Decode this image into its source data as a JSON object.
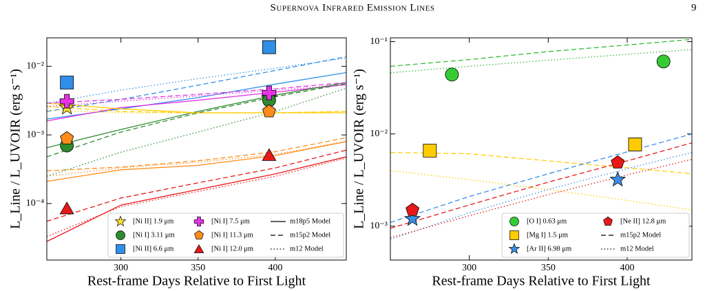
{
  "header": {
    "title": "Supernova Infrared Emission Lines",
    "page": "9"
  },
  "chart_data": [
    {
      "type": "line",
      "xlabel": "Rest-frame Days Relative to First Light",
      "ylabel": "L_Line / L_UVOIR (erg s⁻¹)",
      "xlim": [
        252,
        446
      ],
      "xticks": [
        300,
        350,
        400
      ],
      "ylim": [
        1.5e-05,
        0.026
      ],
      "yscale": "log",
      "yticks": [
        {
          "value": 0.0001,
          "label": "10⁻⁴"
        },
        {
          "value": 0.001,
          "label": "10⁻³"
        },
        {
          "value": 0.01,
          "label": "10⁻²"
        }
      ],
      "legend": "lower right",
      "series": [
        {
          "name": "[Ni II] 1.9 μm",
          "color": "#ffe135",
          "marker": "star",
          "x": [
            265,
            396
          ],
          "values": [
            0.0025,
            0.0034
          ]
        },
        {
          "name": "[Ni I] 3.11 μm",
          "color": "#2e8b2e",
          "marker": "circle",
          "x": [
            265,
            396
          ],
          "values": [
            0.0007,
            0.0032
          ]
        },
        {
          "name": "[Ni II] 6.6 μm",
          "color": "#2f8fe8",
          "marker": "square",
          "x": [
            265,
            396
          ],
          "values": [
            0.0058,
            0.019
          ]
        },
        {
          "name": "[Ni I] 7.5 μm",
          "color": "#e633e6",
          "marker": "plus",
          "x": [
            265,
            396
          ],
          "values": [
            0.0031,
            0.0041
          ]
        },
        {
          "name": "[Ni I] 11.3 μm",
          "color": "#ff8c1a",
          "marker": "pentagon",
          "x": [
            265,
            396
          ],
          "values": [
            0.00089,
            0.0022
          ]
        },
        {
          "name": "[Ni I] 12.0 μm",
          "color": "#e81818",
          "marker": "triangle",
          "x": [
            265,
            396
          ],
          "values": [
            8.5e-05,
            0.00051
          ]
        }
      ],
      "models": [
        {
          "name": "m18p5 Model",
          "dash": "solid",
          "x": [
            252,
            300,
            350,
            400,
            446
          ],
          "lines": [
            {
              "color": "#2f8fe8",
              "values": [
                0.0017,
                0.0024,
                0.0035,
                0.0055,
                0.0081
              ]
            },
            {
              "color": "#e633e6",
              "values": [
                0.0016,
                0.0025,
                0.0032,
                0.0042,
                0.0054
              ]
            },
            {
              "color": "#ffcc00",
              "values": [
                0.0029,
                0.0024,
                0.0021,
                0.0021,
                0.0021
              ]
            },
            {
              "color": "#2e8b2e",
              "values": [
                0.00065,
                0.0012,
                0.0022,
                0.0038,
                0.0058
              ]
            },
            {
              "color": "#ff8c1a",
              "values": [
                0.00021,
                0.00031,
                0.00036,
                0.0005,
                0.0008
              ]
            },
            {
              "color": "#e81818",
              "values": [
                2.8e-05,
                9.5e-05,
                0.00016,
                0.00027,
                0.00048
              ]
            }
          ]
        },
        {
          "name": "m15p2 Model",
          "dash": "dashed",
          "x": [
            252,
            300,
            350,
            400,
            446
          ],
          "lines": [
            {
              "color": "#2f8fe8",
              "values": [
                0.0022,
                0.0033,
                0.0053,
                0.0087,
                0.0138
              ]
            },
            {
              "color": "#e633e6",
              "values": [
                0.0029,
                0.0033,
                0.0039,
                0.0047,
                0.0058
              ]
            },
            {
              "color": "#ffcc00",
              "values": [
                0.0026,
                0.0022,
                0.0021,
                0.0021,
                0.0022
              ]
            },
            {
              "color": "#2e8b2e",
              "values": [
                0.00048,
                0.0011,
                0.0021,
                0.0036,
                0.0056
              ]
            },
            {
              "color": "#ff8c1a",
              "values": [
                0.0003,
                0.00034,
                0.00042,
                0.00057,
                0.00091
              ]
            },
            {
              "color": "#e81818",
              "values": [
                5.5e-05,
                0.00012,
                0.0002,
                0.00033,
                0.0006
              ]
            }
          ]
        },
        {
          "name": "m12 Model",
          "dash": "dotted",
          "x": [
            252,
            300,
            350,
            400,
            446
          ],
          "lines": [
            {
              "color": "#2f8fe8",
              "values": [
                0.0029,
                0.0045,
                0.0066,
                0.0094,
                0.0132
              ]
            },
            {
              "color": "#e633e6",
              "values": [
                0.0026,
                0.0031,
                0.0037,
                0.0045,
                0.0054
              ]
            },
            {
              "color": "#ffcc00",
              "values": [
                0.0023,
                0.0021,
                0.0021,
                0.0021,
                0.0022
              ]
            },
            {
              "color": "#2e8b2e",
              "values": [
                0.00025,
                0.00056,
                0.0011,
                0.0022,
                0.0048
              ]
            },
            {
              "color": "#ff8c1a",
              "values": [
                0.00025,
                0.00033,
                0.0004,
                0.00052,
                0.00081
              ]
            },
            {
              "color": "#e81818",
              "values": [
                3.3e-05,
                9e-05,
                0.00015,
                0.00025,
                0.00046
              ]
            }
          ]
        }
      ]
    },
    {
      "type": "line",
      "xlabel": "Rest-frame Days Relative to First Light",
      "ylabel": "L_Line / L_UVOIR (erg s⁻¹)",
      "xlim": [
        250,
        441
      ],
      "xticks": [
        300,
        350,
        400
      ],
      "ylim": [
        0.00043,
        0.11
      ],
      "yscale": "log",
      "yticks": [
        {
          "value": 0.001,
          "label": "10⁻³"
        },
        {
          "value": 0.01,
          "label": "10⁻²"
        },
        {
          "value": 0.1,
          "label": "10⁻¹"
        }
      ],
      "legend": "lower right",
      "series": [
        {
          "name": "[O I] 0.63 μm",
          "color": "#33cc33",
          "marker": "circle",
          "x": [
            289,
            423
          ],
          "values": [
            0.044,
            0.061
          ]
        },
        {
          "name": "[Mg I] 1.5 μm",
          "color": "#ffcc00",
          "marker": "square",
          "x": [
            275,
            405
          ],
          "values": [
            0.0066,
            0.0077
          ]
        },
        {
          "name": "[Ar II] 6.98 μm",
          "color": "#3a8ee6",
          "marker": "star",
          "x": [
            264,
            394
          ],
          "values": [
            0.0012,
            0.0032
          ]
        },
        {
          "name": "[Ne II] 12.8 μm",
          "color": "#e81818",
          "marker": "pentagon",
          "x": [
            264,
            394
          ],
          "values": [
            0.0015,
            0.0049
          ]
        }
      ],
      "models": [
        {
          "name": "m15p2 Model",
          "dash": "dashed",
          "x": [
            250,
            300,
            350,
            400,
            441
          ],
          "lines": [
            {
              "color": "#33bb33",
              "values": [
                0.054,
                0.064,
                0.078,
                0.092,
                0.106
              ]
            },
            {
              "color": "#ffcc00",
              "values": [
                0.0063,
                0.0061,
                0.0051,
                0.0043,
                0.0037
              ]
            },
            {
              "color": "#3a8ee6",
              "values": [
                0.0011,
                0.0021,
                0.0037,
                0.0064,
                0.01
              ]
            },
            {
              "color": "#e81818",
              "values": [
                0.00095,
                0.0017,
                0.003,
                0.0051,
                0.008
              ]
            }
          ]
        },
        {
          "name": "m12 Model",
          "dash": "dotted",
          "x": [
            250,
            300,
            350,
            400,
            441
          ],
          "lines": [
            {
              "color": "#33bb33",
              "values": [
                0.046,
                0.054,
                0.063,
                0.073,
                0.082
              ]
            },
            {
              "color": "#ffcc00",
              "values": [
                0.004,
                0.0032,
                0.0025,
                0.0019,
                0.0015
              ]
            },
            {
              "color": "#3a8ee6",
              "values": [
                0.00072,
                0.0014,
                0.0025,
                0.0042,
                0.0063
              ]
            },
            {
              "color": "#e81818",
              "values": [
                0.00075,
                0.0013,
                0.0022,
                0.0036,
                0.0053
              ]
            }
          ]
        }
      ]
    }
  ]
}
